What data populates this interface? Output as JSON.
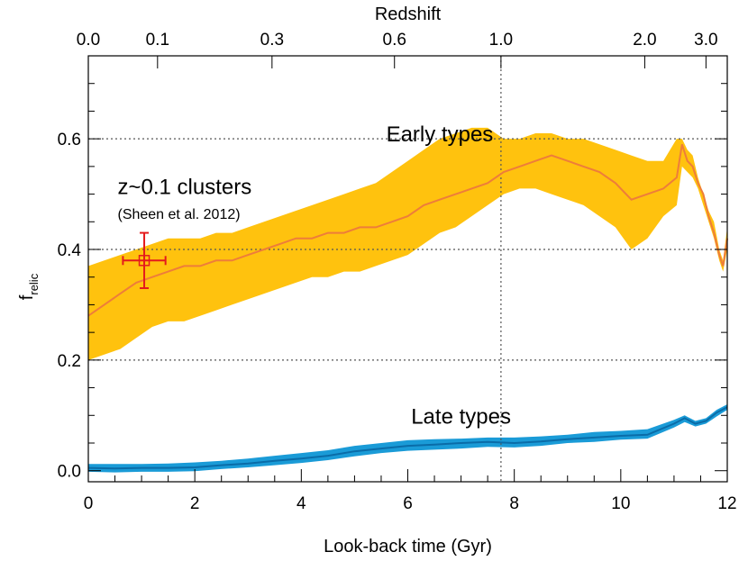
{
  "chart_data": {
    "type": "area",
    "xlabel": "Look-back time (Gyr)",
    "ylabel": "f",
    "ylabel_sub": "relic",
    "top_axis_label": "Redshift",
    "xlim": [
      0,
      12
    ],
    "ylim": [
      -0.02,
      0.75
    ],
    "x_ticks": [
      0,
      2,
      4,
      6,
      8,
      10,
      12
    ],
    "x_tick_labels": [
      "0",
      "2",
      "4",
      "6",
      "8",
      "10",
      "12"
    ],
    "x_minor_step": 0.5,
    "y_ticks": [
      0.0,
      0.2,
      0.4,
      0.6
    ],
    "y_tick_labels": [
      "0.0",
      "0.2",
      "0.4",
      "0.6"
    ],
    "y_minor_step": 0.05,
    "top_ticks": [
      {
        "x": 0.0,
        "label": "0.0"
      },
      {
        "x": 1.3,
        "label": "0.1"
      },
      {
        "x": 3.45,
        "label": "0.3"
      },
      {
        "x": 5.75,
        "label": "0.6"
      },
      {
        "x": 7.75,
        "label": "1.0"
      },
      {
        "x": 10.45,
        "label": "2.0"
      },
      {
        "x": 11.6,
        "label": "3.0"
      }
    ],
    "grid": {
      "hlines": [
        0.2,
        0.4,
        0.6
      ],
      "vline_x": 7.75,
      "style": "dotted"
    },
    "series": [
      {
        "name": "Early types",
        "band_color": "#FFC20E",
        "line_color": "#EE7D3A",
        "x": [
          0.0,
          0.3,
          0.6,
          0.9,
          1.2,
          1.5,
          1.8,
          2.1,
          2.4,
          2.7,
          3.0,
          3.3,
          3.6,
          3.9,
          4.2,
          4.5,
          4.8,
          5.1,
          5.4,
          5.7,
          6.0,
          6.3,
          6.6,
          6.9,
          7.2,
          7.5,
          7.8,
          8.1,
          8.4,
          8.7,
          9.0,
          9.3,
          9.6,
          9.9,
          10.2,
          10.5,
          10.8,
          11.05,
          11.15,
          11.25,
          11.35,
          11.45,
          11.55,
          11.65,
          11.75,
          11.85,
          11.92,
          12.0
        ],
        "upper": [
          0.37,
          0.38,
          0.39,
          0.4,
          0.41,
          0.42,
          0.42,
          0.42,
          0.43,
          0.43,
          0.44,
          0.45,
          0.46,
          0.47,
          0.48,
          0.49,
          0.5,
          0.51,
          0.52,
          0.54,
          0.56,
          0.58,
          0.6,
          0.61,
          0.62,
          0.62,
          0.6,
          0.6,
          0.61,
          0.61,
          0.6,
          0.6,
          0.59,
          0.58,
          0.57,
          0.56,
          0.56,
          0.6,
          0.6,
          0.58,
          0.57,
          0.53,
          0.5,
          0.47,
          0.45,
          0.4,
          0.38,
          0.44
        ],
        "median": [
          0.28,
          0.3,
          0.32,
          0.34,
          0.35,
          0.36,
          0.37,
          0.37,
          0.38,
          0.38,
          0.39,
          0.4,
          0.41,
          0.42,
          0.42,
          0.43,
          0.43,
          0.44,
          0.44,
          0.45,
          0.46,
          0.48,
          0.49,
          0.5,
          0.51,
          0.52,
          0.54,
          0.55,
          0.56,
          0.57,
          0.56,
          0.55,
          0.54,
          0.52,
          0.49,
          0.5,
          0.51,
          0.53,
          0.59,
          0.56,
          0.55,
          0.52,
          0.5,
          0.46,
          0.43,
          0.39,
          0.37,
          0.42
        ],
        "lower": [
          0.2,
          0.21,
          0.22,
          0.24,
          0.26,
          0.27,
          0.27,
          0.28,
          0.29,
          0.3,
          0.31,
          0.32,
          0.33,
          0.34,
          0.35,
          0.35,
          0.36,
          0.36,
          0.37,
          0.38,
          0.39,
          0.41,
          0.43,
          0.44,
          0.46,
          0.48,
          0.5,
          0.51,
          0.51,
          0.5,
          0.49,
          0.48,
          0.46,
          0.44,
          0.4,
          0.42,
          0.46,
          0.48,
          0.55,
          0.54,
          0.53,
          0.51,
          0.48,
          0.45,
          0.42,
          0.38,
          0.36,
          0.4
        ]
      },
      {
        "name": "Late types",
        "band_color": "#1A9BD7",
        "line_color": "#0A6CA8",
        "x": [
          0.0,
          0.5,
          1.0,
          1.5,
          2.0,
          2.5,
          3.0,
          3.5,
          4.0,
          4.5,
          5.0,
          5.5,
          6.0,
          6.5,
          7.0,
          7.5,
          8.0,
          8.5,
          9.0,
          9.5,
          10.0,
          10.5,
          11.0,
          11.2,
          11.4,
          11.6,
          11.8,
          12.0
        ],
        "upper": [
          0.012,
          0.012,
          0.012,
          0.013,
          0.015,
          0.018,
          0.022,
          0.027,
          0.032,
          0.037,
          0.045,
          0.05,
          0.055,
          0.057,
          0.058,
          0.06,
          0.06,
          0.062,
          0.065,
          0.07,
          0.072,
          0.075,
          0.092,
          0.1,
          0.09,
          0.095,
          0.11,
          0.12
        ],
        "median": [
          0.005,
          0.004,
          0.005,
          0.005,
          0.006,
          0.01,
          0.013,
          0.018,
          0.022,
          0.027,
          0.035,
          0.04,
          0.045,
          0.047,
          0.05,
          0.052,
          0.05,
          0.053,
          0.057,
          0.06,
          0.063,
          0.065,
          0.085,
          0.095,
          0.085,
          0.09,
          0.105,
          0.115
        ],
        "lower": [
          -0.002,
          -0.003,
          -0.002,
          -0.002,
          -0.001,
          0.003,
          0.006,
          0.01,
          0.014,
          0.019,
          0.026,
          0.032,
          0.036,
          0.038,
          0.04,
          0.043,
          0.042,
          0.045,
          0.05,
          0.052,
          0.056,
          0.058,
          0.078,
          0.088,
          0.08,
          0.085,
          0.098,
          0.11
        ]
      }
    ],
    "reference_point": {
      "name": "z~0.1 clusters",
      "citation": "(Sheen et al. 2012)",
      "x": 1.05,
      "y": 0.38,
      "x_err": [
        0.65,
        1.45
      ],
      "y_err": [
        0.33,
        0.43
      ],
      "color": "#E41A1C"
    },
    "annotations": [
      {
        "text": "Early types",
        "x": 6.6,
        "y": 0.595,
        "size": "big"
      },
      {
        "text": "Late types",
        "x": 7.0,
        "y": 0.085,
        "size": "big"
      },
      {
        "text": "z~0.1 clusters",
        "x": 0.55,
        "y": 0.5,
        "size": "big"
      },
      {
        "text": "(Sheen et al. 2012)",
        "x": 0.55,
        "y": 0.455,
        "size": "small"
      }
    ]
  }
}
